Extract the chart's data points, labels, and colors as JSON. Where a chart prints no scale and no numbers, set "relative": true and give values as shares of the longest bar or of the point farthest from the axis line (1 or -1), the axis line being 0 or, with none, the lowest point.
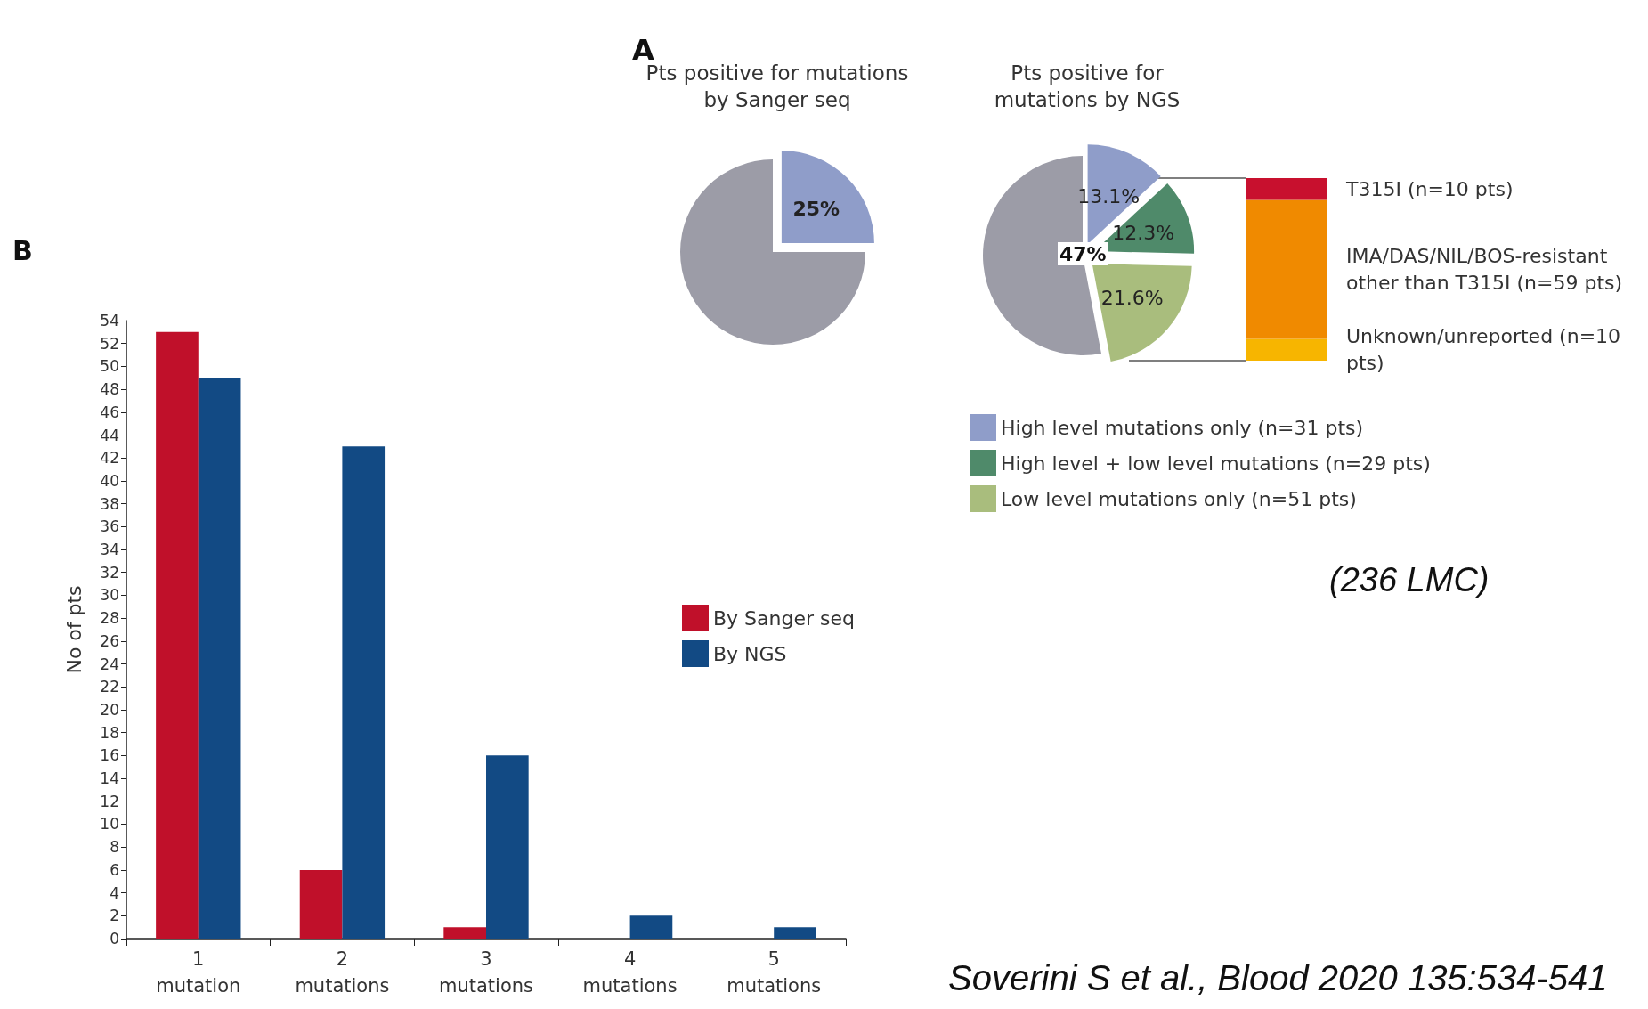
{
  "chart_data": [
    {
      "type": "pie",
      "title": "Pts positive for mutations\nby Sanger seq",
      "categories": [
        null,
        null
      ],
      "values": [
        25,
        75
      ],
      "colors": [
        "#8f9dc9",
        "#9c9ca7"
      ],
      "value_labels": [
        "25%",
        null
      ],
      "annotations": [
        "A"
      ]
    },
    {
      "type": "pie",
      "title": "Pts positive for\nmutations by NGS",
      "categories": [
        "High level mutations only (n=31 pts)",
        "High level + low level mutations (n=29 pts)",
        "Low level mutations only (n=51 pts)",
        null
      ],
      "values": [
        13.1,
        12.3,
        21.6,
        53
      ],
      "colors": [
        "#8f9dc9",
        "#4f8a6a",
        "#a9bd7d",
        "#9c9ca7"
      ],
      "value_labels": [
        "13.1%",
        "12.3%",
        "21.6%",
        null
      ],
      "legend": "bottom",
      "annotations": [
        "47%"
      ]
    },
    {
      "type": "bar",
      "stacked": true,
      "relative": true,
      "categories": [
        null
      ],
      "series": [
        {
          "name": "Unknown/unreported (n=10 pts)",
          "color": "#f7b500",
          "values": [
            0.12
          ]
        },
        {
          "name": "IMA/DAS/NIL/BOS-resistant other than T315I (n=59 pts)",
          "color": "#f08a00",
          "values": [
            0.76
          ]
        },
        {
          "name": "T315I (n=10 pts)",
          "color": "#c8102e",
          "values": [
            0.12
          ]
        }
      ]
    },
    {
      "type": "bar",
      "ylabel": "No of pts",
      "categories": [
        "1\nmutation",
        "2\nmutations",
        "3\nmutations",
        "4\nmutations",
        "5\nmutations"
      ],
      "series": [
        {
          "name": "By Sanger seq",
          "color": "#c0102a",
          "values": [
            53,
            6,
            1,
            0,
            0
          ]
        },
        {
          "name": "By NGS",
          "color": "#124a84",
          "values": [
            49,
            43,
            16,
            2,
            1
          ]
        }
      ],
      "ylim": [
        0,
        54
      ],
      "yticks": [
        0,
        2,
        4,
        6,
        8,
        10,
        12,
        14,
        16,
        18,
        20,
        22,
        24,
        26,
        28,
        30,
        32,
        34,
        36,
        38,
        40,
        42,
        44,
        46,
        48,
        50,
        52,
        54
      ],
      "legend": "right",
      "annotations": [
        "B",
        "(236 LMC)",
        "Soverini S et al., Blood 2020 135:534-541"
      ]
    }
  ]
}
